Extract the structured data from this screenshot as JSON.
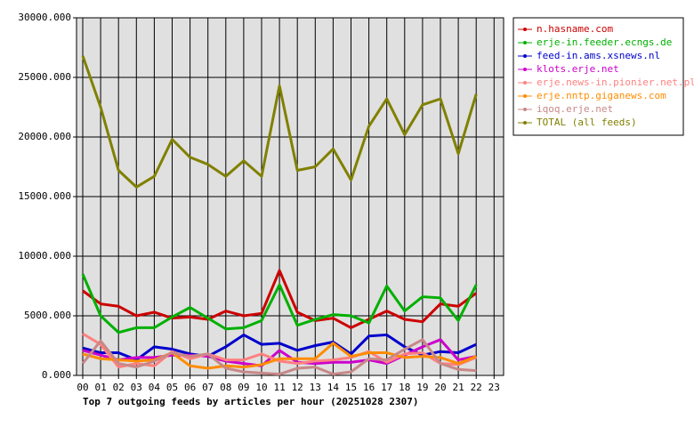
{
  "chart_data": {
    "type": "line",
    "title": "Top 7 outgoing feeds by articles per hour (20251028 2307)",
    "categories": [
      "00",
      "01",
      "02",
      "03",
      "04",
      "05",
      "06",
      "07",
      "08",
      "09",
      "10",
      "11",
      "12",
      "13",
      "14",
      "15",
      "16",
      "17",
      "18",
      "19",
      "20",
      "21",
      "22",
      "23"
    ],
    "ylim": [
      0,
      30000
    ],
    "yticks": [
      {
        "value": 0,
        "label": "0.000"
      },
      {
        "value": 5000,
        "label": "5000.000"
      },
      {
        "value": 10000,
        "label": "10000.000"
      },
      {
        "value": 15000,
        "label": "15000.000"
      },
      {
        "value": 20000,
        "label": "20000.000"
      },
      {
        "value": 25000,
        "label": "25000.000"
      },
      {
        "value": 30000,
        "label": "30000.000"
      }
    ],
    "grid": true,
    "legend": "right",
    "series": [
      {
        "name": "n.hasname.com",
        "color": "#cc0000",
        "values": [
          7100,
          6000,
          5800,
          5000,
          5300,
          4800,
          4900,
          4700,
          5400,
          5000,
          5200,
          8800,
          5300,
          4600,
          4800,
          4000,
          4700,
          5400,
          4700,
          4500,
          6000,
          5800,
          6900,
          null
        ]
      },
      {
        "name": "erje-in.feeder.ecngs.de",
        "color": "#00b000",
        "values": [
          8500,
          5000,
          3600,
          4000,
          4000,
          4900,
          5700,
          4800,
          3900,
          4000,
          4600,
          7600,
          4200,
          4700,
          5100,
          5000,
          4400,
          7500,
          5400,
          6600,
          6500,
          4600,
          7600,
          null
        ]
      },
      {
        "name": "feed-in.ams.xsnews.nl",
        "color": "#0000cc",
        "values": [
          2300,
          1900,
          1900,
          1300,
          2400,
          2200,
          1800,
          1600,
          2400,
          3400,
          2600,
          2700,
          2100,
          2500,
          2800,
          1800,
          3300,
          3400,
          2400,
          1700,
          2000,
          1900,
          2600,
          null
        ]
      },
      {
        "name": "klots.erje.net",
        "color": "#cc00cc",
        "values": [
          2100,
          1700,
          1300,
          1500,
          1500,
          1700,
          1700,
          1600,
          1200,
          1000,
          800,
          2100,
          1100,
          1000,
          1100,
          1100,
          1300,
          1000,
          1700,
          2400,
          3000,
          1300,
          1600,
          null
        ]
      },
      {
        "name": "erje.news-in.pionier.net.pl",
        "color": "#ff8080",
        "values": [
          3500,
          2600,
          700,
          1000,
          800,
          2000,
          1400,
          1800,
          1300,
          1300,
          1800,
          1200,
          1000,
          1200,
          1300,
          1500,
          2000,
          1100,
          1800,
          1900,
          1000,
          900,
          1500,
          null
        ]
      },
      {
        "name": "erje.nntp.giganews.com",
        "color": "#ff8c00",
        "values": [
          1800,
          1400,
          1300,
          1200,
          1300,
          1900,
          800,
          600,
          800,
          700,
          900,
          1400,
          1400,
          1400,
          2700,
          1600,
          1900,
          1900,
          1500,
          1600,
          1500,
          1000,
          1600,
          null
        ]
      },
      {
        "name": "iqoq.erje.net",
        "color": "#c88888",
        "values": [
          1000,
          2900,
          1000,
          700,
          1200,
          1900,
          1600,
          1800,
          600,
          300,
          200,
          100,
          600,
          700,
          100,
          300,
          1400,
          1300,
          2200,
          3000,
          1000,
          500,
          400,
          null
        ]
      },
      {
        "name": "TOTAL (all feeds)",
        "color": "#808000",
        "values": [
          26800,
          22500,
          17200,
          15800,
          16700,
          19800,
          18300,
          17700,
          16700,
          18000,
          16700,
          24300,
          17200,
          17500,
          19000,
          16400,
          20900,
          23200,
          20200,
          22700,
          23200,
          18600,
          23600,
          null
        ]
      }
    ]
  }
}
